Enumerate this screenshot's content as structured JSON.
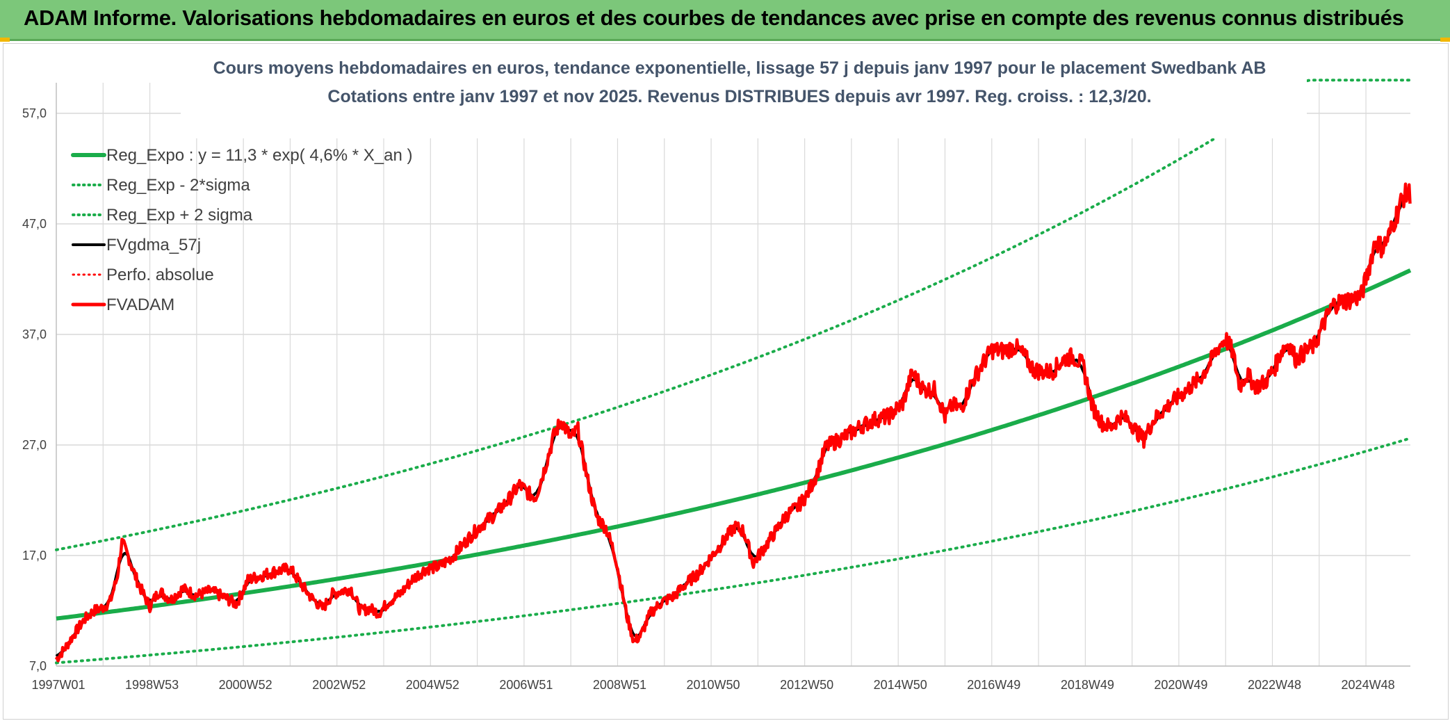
{
  "header": {
    "title": "ADAM Informe. Valorisations hebdomadaires en euros et des courbes de tendances avec prise en compte des revenus connus distribués"
  },
  "colors": {
    "banner": "#7cc77a",
    "reg": "#1aac4a",
    "fvgdma": "#000000",
    "fvadam": "#ff0000",
    "perfo": "#ff0000",
    "grid": "#d9d9d9",
    "title": "#44546a"
  },
  "chart_data": {
    "type": "line",
    "title": "Cours moyens hebdomadaires en euros, tendance exponentielle, lissage 57 j depuis janv 1997 pour le placement Swedbank AB",
    "subtitle": "Cotations entre janv 1997 et nov 2025. Revenus DISTRIBUES depuis avr 1997. Reg. croiss. : 12,3/20.",
    "xlabel": "",
    "ylabel": "",
    "xlim": [
      1997.0,
      2025.95
    ],
    "ylim": [
      7,
      60
    ],
    "y_ticks": [
      7,
      17,
      27,
      37,
      47,
      57
    ],
    "y_tick_labels": [
      "7,0",
      "17,0",
      "27,0",
      "37,0",
      "47,0",
      "57,0"
    ],
    "x_tick_labels": [
      "1997W01",
      "1998W53",
      "2000W52",
      "2002W52",
      "2004W52",
      "2006W51",
      "2008W51",
      "2010W50",
      "2012W50",
      "2014W50",
      "2016W49",
      "2018W49",
      "2020W49",
      "2022W48",
      "2024W48"
    ],
    "x_tick_years": [
      1997.0,
      1999.0,
      2001.0,
      2003.0,
      2005.0,
      2007.0,
      2009.0,
      2011.0,
      2013.0,
      2015.0,
      2017.0,
      2019.0,
      2021.0,
      2023.0,
      2025.0
    ],
    "regression": {
      "a": 11.3,
      "rate": 0.046,
      "sigma_factor": 1.55,
      "cap": 60
    },
    "series": [
      {
        "name": "Reg_Expo : y = 11,3 * exp( 4,6% *  X_an )",
        "style": "solid",
        "color": "#1aac4a",
        "width": 6
      },
      {
        "name": "Reg_Exp - 2*sigma",
        "style": "dotted",
        "color": "#1aac4a",
        "width": 4
      },
      {
        "name": "Reg_Exp + 2 sigma",
        "style": "dotted",
        "color": "#1aac4a",
        "width": 4
      },
      {
        "name": "FVgdma_57j",
        "style": "solid",
        "color": "#000000",
        "width": 4
      },
      {
        "name": "Perfo. absolue",
        "style": "dotted",
        "color": "#ff0000",
        "width": 3
      },
      {
        "name": "FVADAM",
        "style": "solid",
        "color": "#ff0000",
        "width": 5
      }
    ],
    "fvadam_points": [
      [
        1997.0,
        7.6
      ],
      [
        1997.2,
        8.7
      ],
      [
        1997.4,
        10.0
      ],
      [
        1997.6,
        11.2
      ],
      [
        1997.8,
        12.0
      ],
      [
        1998.0,
        12.3
      ],
      [
        1998.15,
        12.8
      ],
      [
        1998.3,
        15.0
      ],
      [
        1998.4,
        18.2
      ],
      [
        1998.55,
        16.8
      ],
      [
        1998.7,
        15.0
      ],
      [
        1998.85,
        13.6
      ],
      [
        1999.0,
        12.4
      ],
      [
        1999.2,
        13.8
      ],
      [
        1999.45,
        13.0
      ],
      [
        1999.7,
        14.0
      ],
      [
        2000.0,
        13.4
      ],
      [
        2000.3,
        13.8
      ],
      [
        2000.6,
        13.2
      ],
      [
        2000.85,
        12.6
      ],
      [
        2001.1,
        14.8
      ],
      [
        2001.4,
        15.2
      ],
      [
        2001.7,
        15.6
      ],
      [
        2002.0,
        15.8
      ],
      [
        2002.2,
        14.6
      ],
      [
        2002.45,
        13.2
      ],
      [
        2002.7,
        12.2
      ],
      [
        2002.9,
        13.5
      ],
      [
        2003.1,
        13.8
      ],
      [
        2003.3,
        14.0
      ],
      [
        2003.5,
        12.0
      ],
      [
        2003.7,
        12.2
      ],
      [
        2003.9,
        11.8
      ],
      [
        2004.1,
        12.8
      ],
      [
        2004.35,
        13.5
      ],
      [
        2004.6,
        14.8
      ],
      [
        2004.9,
        15.8
      ],
      [
        2005.2,
        16.0
      ],
      [
        2005.5,
        17.0
      ],
      [
        2005.8,
        18.5
      ],
      [
        2006.1,
        19.8
      ],
      [
        2006.4,
        20.8
      ],
      [
        2006.7,
        22.2
      ],
      [
        2006.9,
        23.4
      ],
      [
        2007.1,
        22.6
      ],
      [
        2007.25,
        22.3
      ],
      [
        2007.45,
        25.0
      ],
      [
        2007.65,
        28.0
      ],
      [
        2007.8,
        29.2
      ],
      [
        2008.0,
        27.6
      ],
      [
        2008.15,
        28.4
      ],
      [
        2008.35,
        24.0
      ],
      [
        2008.55,
        20.5
      ],
      [
        2008.75,
        19.5
      ],
      [
        2008.95,
        17.0
      ],
      [
        2009.2,
        11.5
      ],
      [
        2009.35,
        9.2
      ],
      [
        2009.5,
        9.8
      ],
      [
        2009.7,
        11.8
      ],
      [
        2009.95,
        12.8
      ],
      [
        2010.2,
        13.3
      ],
      [
        2010.45,
        14.4
      ],
      [
        2010.75,
        15.5
      ],
      [
        2011.0,
        16.9
      ],
      [
        2011.25,
        18.2
      ],
      [
        2011.5,
        19.6
      ],
      [
        2011.7,
        19.2
      ],
      [
        2011.9,
        16.3
      ],
      [
        2012.1,
        17.5
      ],
      [
        2012.35,
        19.0
      ],
      [
        2012.6,
        20.6
      ],
      [
        2012.85,
        21.4
      ],
      [
        2013.05,
        22.5
      ],
      [
        2013.25,
        24.3
      ],
      [
        2013.45,
        26.8
      ],
      [
        2013.7,
        27.4
      ],
      [
        2013.95,
        28.0
      ],
      [
        2014.2,
        28.7
      ],
      [
        2014.5,
        29.3
      ],
      [
        2014.8,
        29.6
      ],
      [
        2015.1,
        30.8
      ],
      [
        2015.3,
        33.5
      ],
      [
        2015.55,
        32.0
      ],
      [
        2015.8,
        32.0
      ],
      [
        2016.0,
        29.5
      ],
      [
        2016.15,
        30.6
      ],
      [
        2016.35,
        30.3
      ],
      [
        2016.55,
        32.5
      ],
      [
        2016.8,
        34.3
      ],
      [
        2017.0,
        35.6
      ],
      [
        2017.25,
        35.5
      ],
      [
        2017.5,
        35.9
      ],
      [
        2017.7,
        35.0
      ],
      [
        2017.9,
        33.8
      ],
      [
        2018.1,
        33.6
      ],
      [
        2018.3,
        33.7
      ],
      [
        2018.55,
        34.8
      ],
      [
        2018.75,
        35.0
      ],
      [
        2018.95,
        34.2
      ],
      [
        2019.15,
        30.5
      ],
      [
        2019.35,
        29.0
      ],
      [
        2019.55,
        28.6
      ],
      [
        2019.75,
        29.6
      ],
      [
        2019.95,
        29.2
      ],
      [
        2020.1,
        28.2
      ],
      [
        2020.25,
        27.5
      ],
      [
        2020.45,
        29.2
      ],
      [
        2020.7,
        30.3
      ],
      [
        2020.95,
        31.2
      ],
      [
        2021.2,
        32.1
      ],
      [
        2021.45,
        33.0
      ],
      [
        2021.65,
        34.3
      ],
      [
        2021.85,
        35.9
      ],
      [
        2022.0,
        36.6
      ],
      [
        2022.15,
        35.4
      ],
      [
        2022.3,
        32.3
      ],
      [
        2022.45,
        33.4
      ],
      [
        2022.65,
        32.3
      ],
      [
        2022.85,
        32.7
      ],
      [
        2023.05,
        34.0
      ],
      [
        2023.2,
        35.6
      ],
      [
        2023.35,
        36.2
      ],
      [
        2023.5,
        34.8
      ],
      [
        2023.7,
        35.4
      ],
      [
        2023.9,
        36.0
      ],
      [
        2024.1,
        38.0
      ],
      [
        2024.3,
        39.7
      ],
      [
        2024.5,
        40.0
      ],
      [
        2024.7,
        40.2
      ],
      [
        2024.9,
        40.5
      ],
      [
        2025.05,
        42.8
      ],
      [
        2025.2,
        45.5
      ],
      [
        2025.35,
        44.8
      ],
      [
        2025.5,
        46.0
      ],
      [
        2025.65,
        47.8
      ],
      [
        2025.8,
        49.5
      ],
      [
        2025.95,
        49.8
      ]
    ],
    "fvgdma_window": 7,
    "fvadam_noise": 0.55
  }
}
